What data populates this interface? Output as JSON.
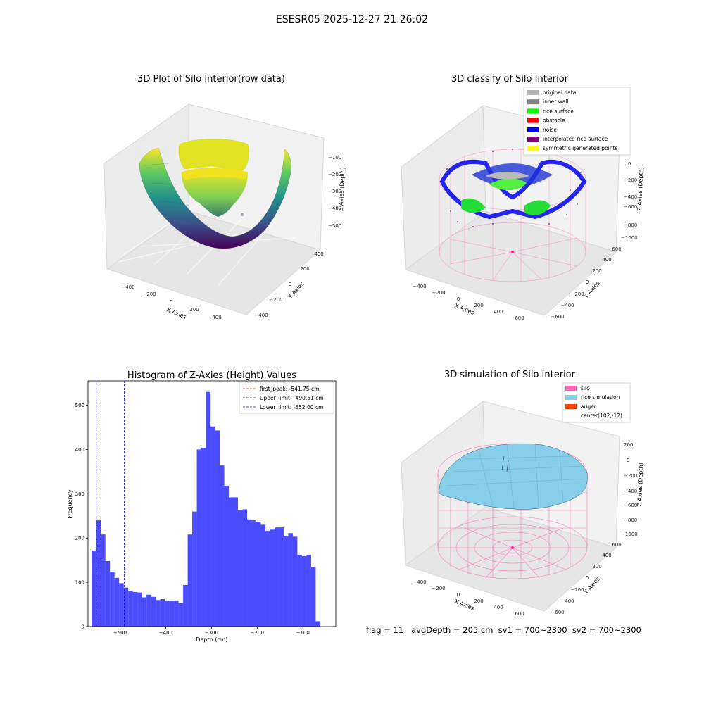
{
  "figure": {
    "suptitle": "ESESR05 2025-12-27 21:26:02",
    "footer": "flag = 11   avgDepth = 205 cm  sv1 = 700~2300  sv2 = 700~2300"
  },
  "chart_data": [
    {
      "type": "surface3d",
      "title": "3D Plot of Silo Interior(row data)",
      "xlabel": "X Axies",
      "ylabel": "Y Axies",
      "zlabel": "Z Axies (Depth)",
      "xticks": [
        "−400",
        "−200",
        "0",
        "200",
        "400"
      ],
      "yticks": [
        "−400",
        "−200",
        "0",
        "200",
        "400"
      ],
      "zticks": [
        "−100",
        "−200",
        "−300",
        "−400",
        "−500"
      ],
      "xlim": [
        -550,
        550
      ],
      "ylim": [
        -500,
        500
      ],
      "zlim": [
        -560,
        -40
      ],
      "colormap": "viridis"
    },
    {
      "type": "scatter3d",
      "title": "3D classify of Silo Interior",
      "xlabel": "X Axies",
      "ylabel": "Y Axies",
      "zlabel": "Z Axies (Depth)",
      "xticks": [
        "−400",
        "−200",
        "0",
        "200",
        "400",
        "600"
      ],
      "yticks": [
        "−600",
        "−400",
        "−200",
        "0",
        "200",
        "400",
        "600"
      ],
      "zticks": [
        "0",
        "−200",
        "−400",
        "−600",
        "−800",
        "−1000"
      ],
      "legend_position": "top-right",
      "legend": [
        {
          "label": "original data",
          "color": "#b3b3b3"
        },
        {
          "label": "inner wall",
          "color": "#808080"
        },
        {
          "label": "rice surface",
          "color": "#00ff00"
        },
        {
          "label": "obstacle",
          "color": "#ff0000"
        },
        {
          "label": "noise",
          "color": "#0000ff"
        },
        {
          "label": "interpolated rice surface",
          "color": "#800080"
        },
        {
          "label": "symmetric generated points",
          "color": "#ffff00"
        }
      ]
    },
    {
      "type": "bar",
      "title": "Histogram of Z-Axies (Height) Values",
      "xlabel": "Depth (cm)",
      "ylabel": "Frequency",
      "xlim": [
        -570,
        -28
      ],
      "ylim": [
        0,
        555
      ],
      "xticks": [
        -500,
        -400,
        -300,
        -200,
        -100
      ],
      "yticks": [
        0,
        100,
        200,
        300,
        400,
        500
      ],
      "bin_width": 10,
      "bin_start": -562,
      "counts": [
        172,
        240,
        208,
        148,
        124,
        110,
        98,
        88,
        80,
        78,
        77,
        66,
        72,
        67,
        60,
        62,
        59,
        59,
        59,
        53,
        94,
        208,
        260,
        400,
        404,
        530,
        452,
        443,
        364,
        318,
        292,
        292,
        263,
        265,
        242,
        240,
        237,
        230,
        216,
        219,
        224,
        224,
        204,
        211,
        203,
        162,
        159,
        162,
        134,
        12
      ],
      "color": "#0000ff",
      "legend_position": "top-right",
      "lines": [
        {
          "label": "first_peak: -541.75 cm",
          "x": -541.75,
          "color": "#ff0000"
        },
        {
          "label": "Upper_limit: -490.51 cm",
          "x": -490.51,
          "color": "#0000cc"
        },
        {
          "label": "Lower_limit: -552.00 cm",
          "x": -552.0,
          "color": "#0000cc"
        }
      ]
    },
    {
      "type": "surface3d",
      "title": "3D simulation of Silo Interior",
      "xlabel": "X Axies",
      "ylabel": "Y Axies",
      "zlabel": "Z Axies (Depth)",
      "xticks": [
        "−400",
        "−200",
        "0",
        "200",
        "400",
        "600"
      ],
      "yticks": [
        "−600",
        "−400",
        "−200",
        "0",
        "200",
        "400",
        "600"
      ],
      "zticks": [
        "200",
        "0",
        "−200",
        "−400",
        "−600",
        "−800",
        "−1000"
      ],
      "legend_position": "top-right",
      "legend": [
        {
          "label": "silo",
          "color": "#ff69b4"
        },
        {
          "label": "rice simulation",
          "color": "#87ceeb"
        },
        {
          "label": "auger",
          "color": "#ff4500"
        },
        {
          "label": "center(102,-12)",
          "color": ""
        }
      ]
    }
  ]
}
